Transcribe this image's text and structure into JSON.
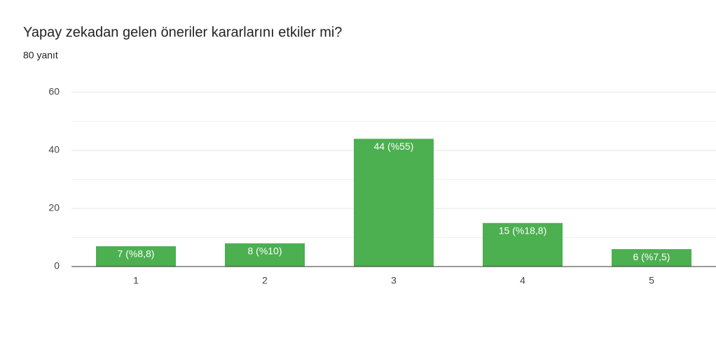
{
  "chart_data": {
    "type": "bar",
    "title": "Yapay zekadan gelen öneriler kararlarını etkiler mi?",
    "subtitle": "80 yanıt",
    "categories": [
      "1",
      "2",
      "3",
      "4",
      "5"
    ],
    "values": [
      7,
      8,
      44,
      15,
      6
    ],
    "value_labels": [
      "7 (%8,8)",
      "8 (%10)",
      "44 (%55)",
      "15 (%18,8)",
      "6 (%7,5)"
    ],
    "color": "#4caf50",
    "ylim": [
      0,
      60
    ],
    "yticks": [
      0,
      20,
      40,
      60
    ],
    "minor_yticks": [
      10,
      30,
      50
    ],
    "grid": true
  }
}
